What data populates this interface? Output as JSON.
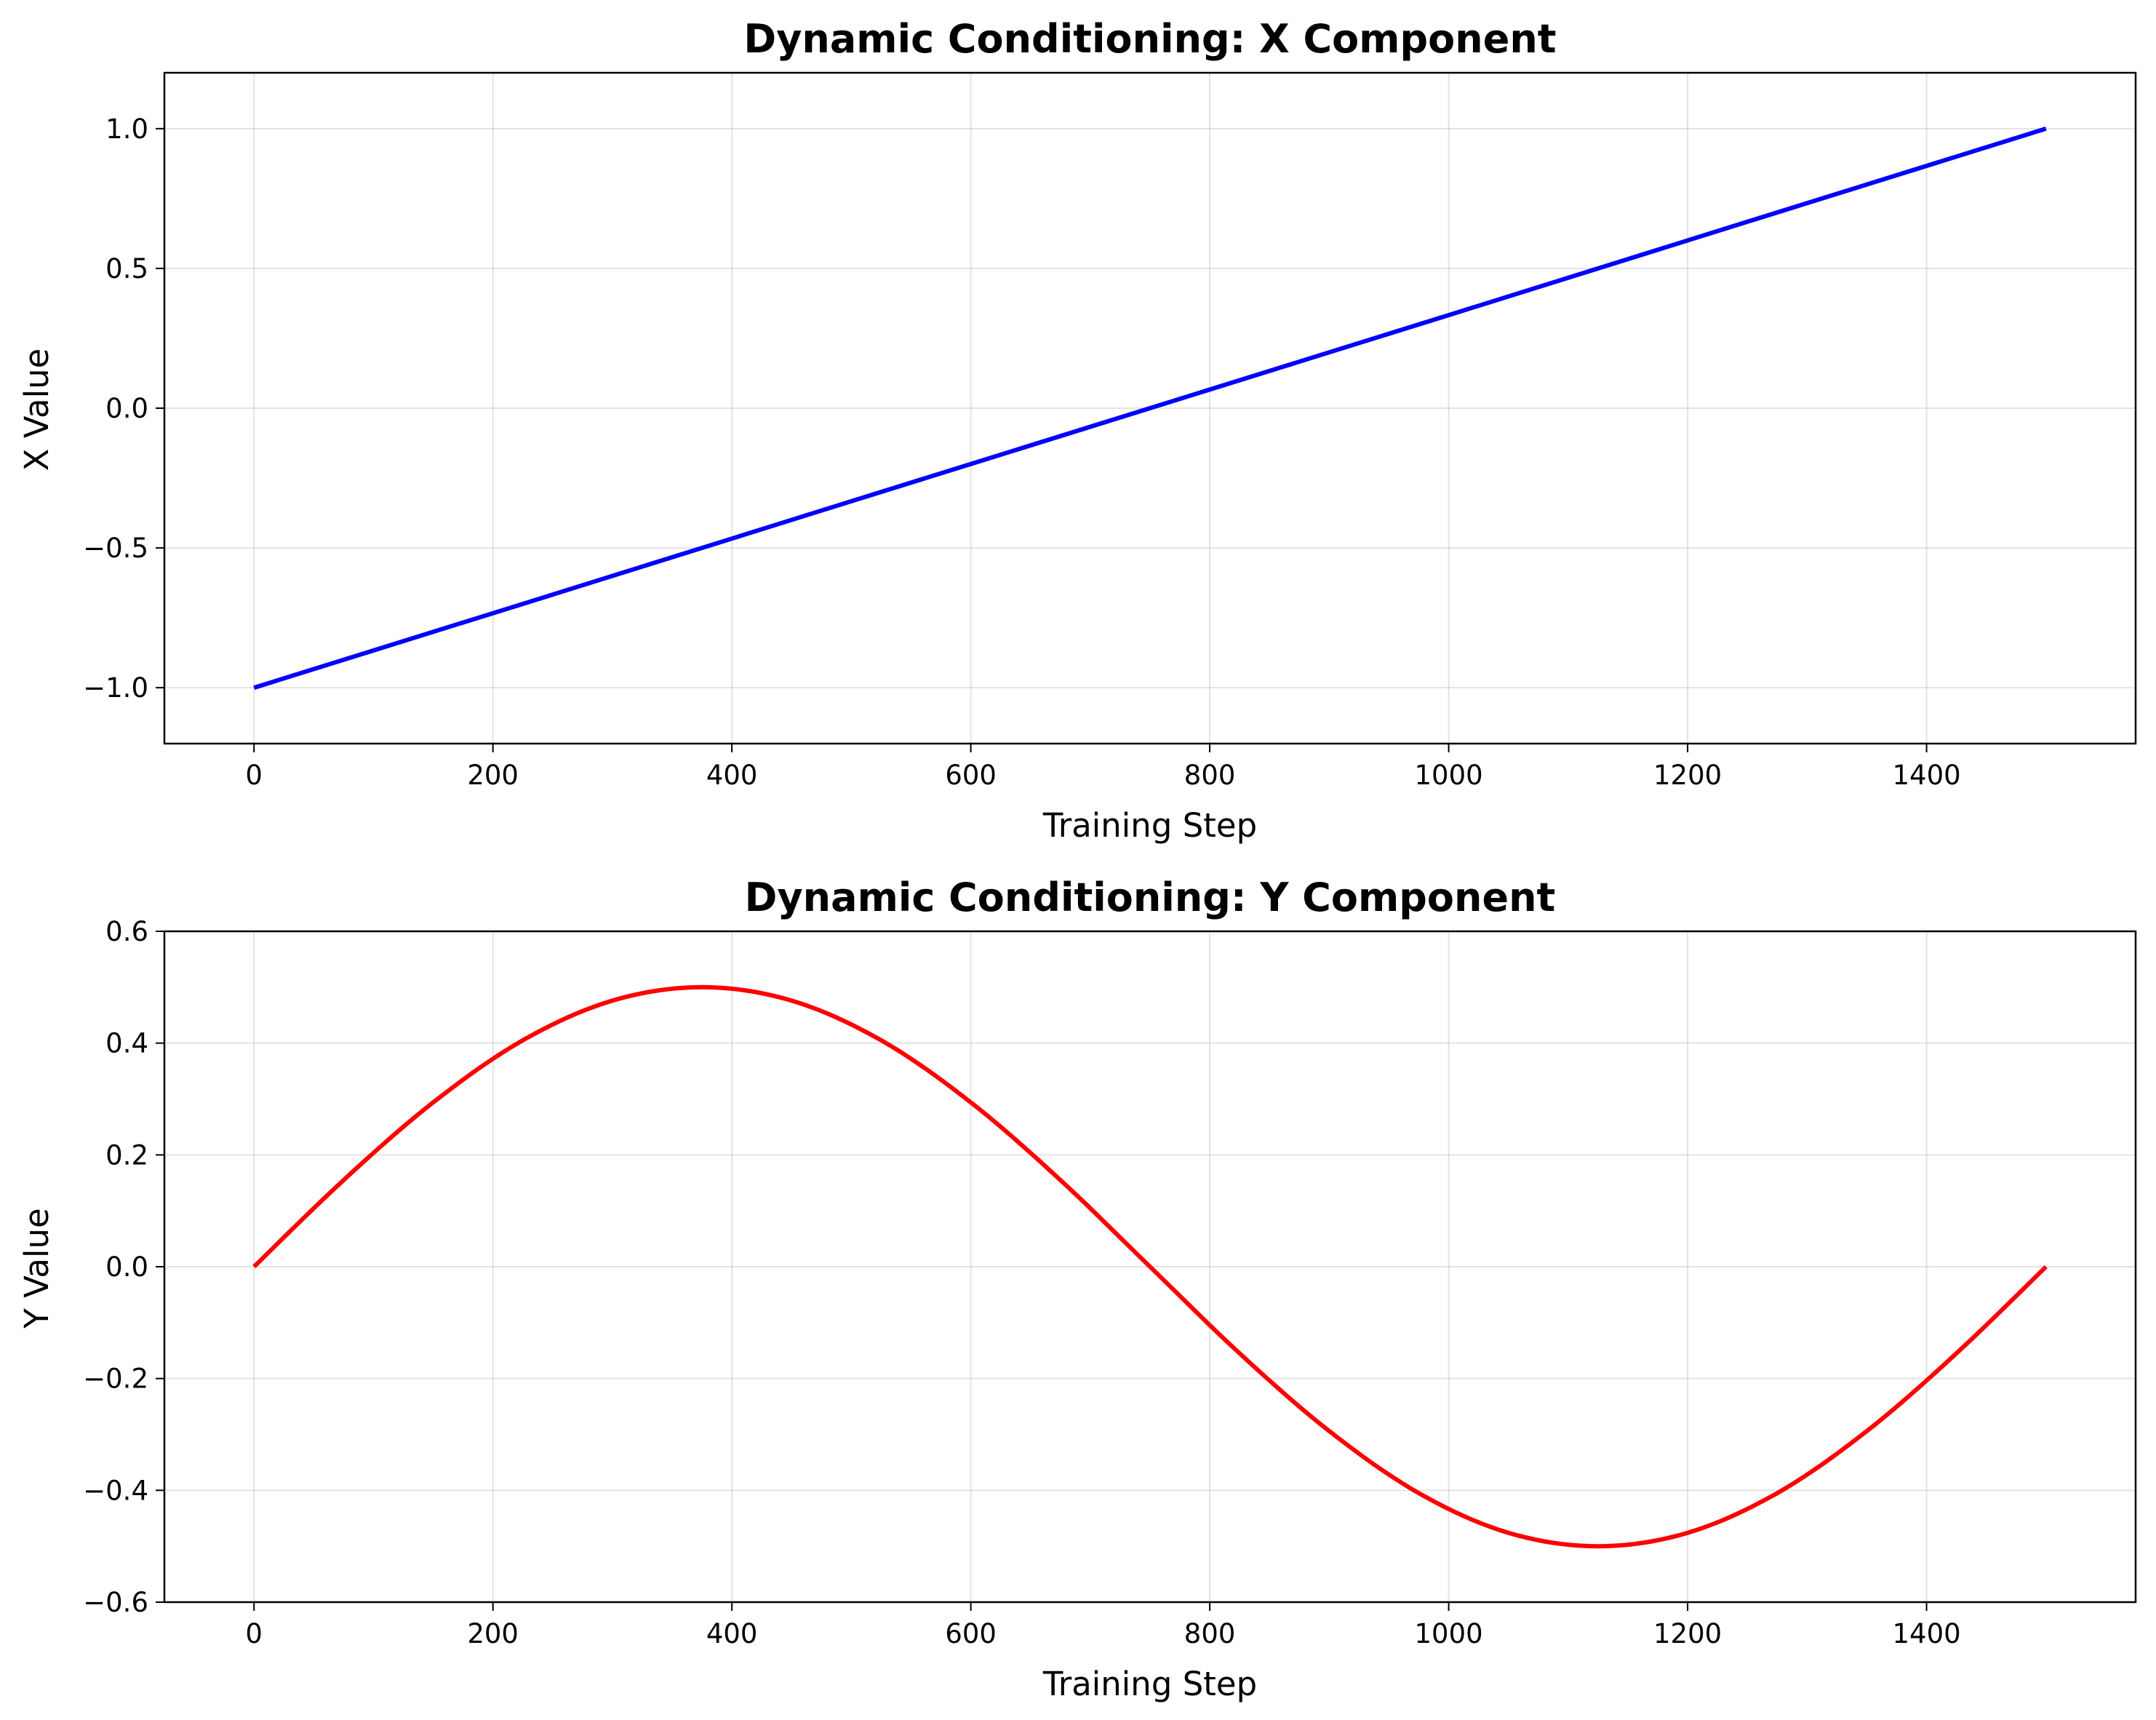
{
  "chart_data": [
    {
      "type": "line",
      "title": "Dynamic Conditioning: X Component",
      "xlabel": "Training Step",
      "ylabel": "X Value",
      "xlim": [
        -75,
        1575
      ],
      "ylim": [
        -1.2,
        1.2
      ],
      "xticks": [
        0,
        200,
        400,
        600,
        800,
        1000,
        1200,
        1400
      ],
      "xtick_labels": [
        "0",
        "200",
        "400",
        "600",
        "800",
        "1000",
        "1200",
        "1400"
      ],
      "yticks": [
        -1.0,
        -0.5,
        0.0,
        0.5,
        1.0
      ],
      "ytick_labels": [
        "−1.0",
        "−0.5",
        "0.0",
        "0.5",
        "1.0"
      ],
      "grid": true,
      "series": [
        {
          "color": "#0000ff",
          "x": [
            0,
            250,
            500,
            750,
            1000,
            1250,
            1500
          ],
          "y": [
            -1.0,
            -0.667,
            -0.333,
            0.0,
            0.333,
            0.667,
            1.0
          ]
        }
      ]
    },
    {
      "type": "line",
      "title": "Dynamic Conditioning: Y Component",
      "xlabel": "Training Step",
      "ylabel": "Y Value",
      "xlim": [
        -75,
        1575
      ],
      "ylim": [
        -0.6,
        0.6
      ],
      "xticks": [
        0,
        200,
        400,
        600,
        800,
        1000,
        1200,
        1400
      ],
      "xtick_labels": [
        "0",
        "200",
        "400",
        "600",
        "800",
        "1000",
        "1200",
        "1400"
      ],
      "yticks": [
        -0.6,
        -0.4,
        -0.2,
        0.0,
        0.2,
        0.4,
        0.6
      ],
      "ytick_labels": [
        "−0.6",
        "−0.4",
        "−0.2",
        "0.0",
        "0.2",
        "0.4",
        "0.6"
      ],
      "grid": true,
      "series": [
        {
          "color": "#ff0000",
          "x": [
            0,
            75,
            150,
            225,
            300,
            375,
            450,
            525,
            600,
            675,
            750,
            825,
            900,
            975,
            1050,
            1125,
            1200,
            1275,
            1350,
            1425,
            1500
          ],
          "y": [
            0.0,
            0.155,
            0.294,
            0.405,
            0.476,
            0.5,
            0.476,
            0.405,
            0.294,
            0.155,
            0.0,
            -0.155,
            -0.294,
            -0.405,
            -0.476,
            -0.5,
            -0.476,
            -0.405,
            -0.294,
            -0.155,
            0.0
          ]
        }
      ]
    }
  ]
}
